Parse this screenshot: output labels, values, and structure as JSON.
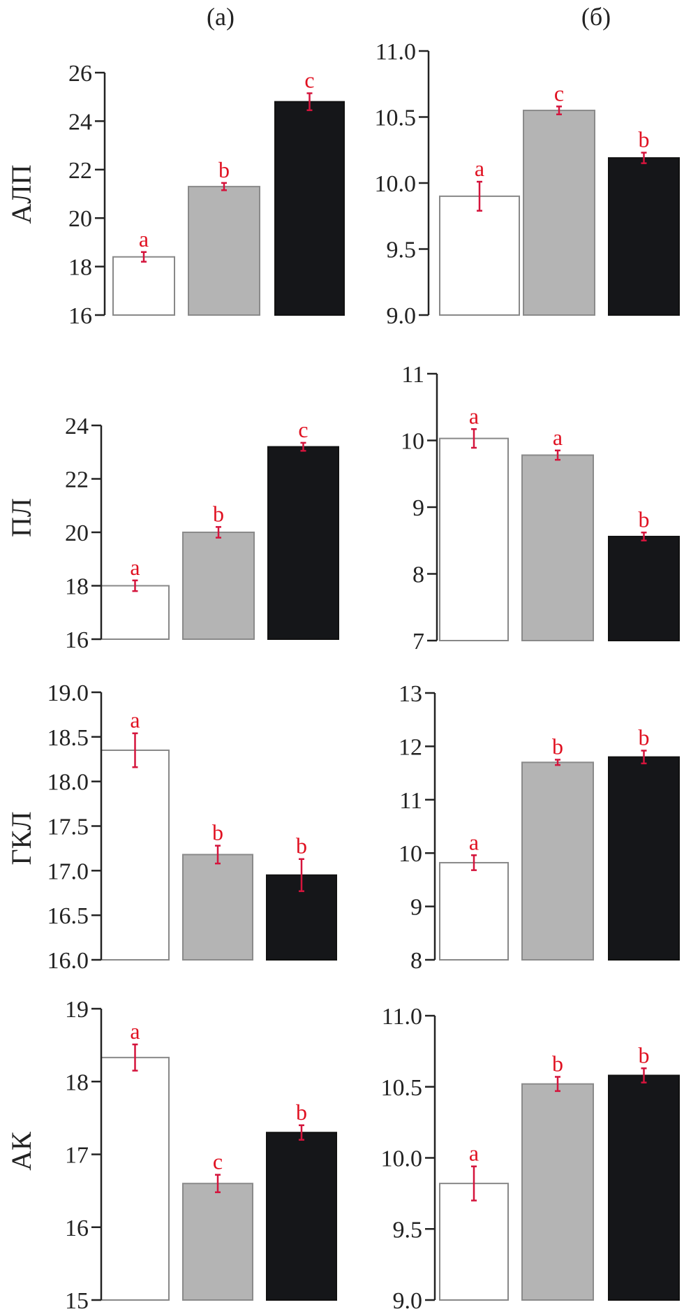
{
  "column_labels": {
    "left": "(а)",
    "right": "(б)"
  },
  "row_labels": [
    "АЛП",
    "ПЛ",
    "ГКЛ",
    "АК"
  ],
  "colors": {
    "bar_white": "#ffffff",
    "bar_gray": "#b4b4b4",
    "bar_black": "#151619",
    "error_bar": "#d4143c",
    "letter": "#e01020",
    "axis": "#222222"
  },
  "chart_data": [
    {
      "panel": "АЛП (а)",
      "type": "bar",
      "ylim": [
        16,
        26
      ],
      "yticks": [
        "16",
        "18",
        "20",
        "22",
        "24",
        "26"
      ],
      "xlabel": "",
      "ylabel": "АЛП",
      "values": [
        18.4,
        21.3,
        24.8
      ],
      "errors": [
        0.2,
        0.15,
        0.35
      ],
      "letters": [
        "a",
        "b",
        "c"
      ]
    },
    {
      "panel": "АЛП (б)",
      "type": "bar",
      "ylim": [
        9.0,
        11.0
      ],
      "yticks": [
        "9.0",
        "9.5",
        "10.0",
        "10.5",
        "11.0"
      ],
      "xlabel": "",
      "ylabel": "",
      "values": [
        9.9,
        10.55,
        10.19
      ],
      "errors": [
        0.11,
        0.03,
        0.04
      ],
      "letters": [
        "a",
        "c",
        "b"
      ]
    },
    {
      "panel": "ПЛ (а)",
      "type": "bar",
      "ylim": [
        16,
        24
      ],
      "yticks": [
        "16",
        "18",
        "20",
        "22",
        "24"
      ],
      "xlabel": "",
      "ylabel": "ПЛ",
      "values": [
        18.0,
        20.0,
        23.2
      ],
      "errors": [
        0.2,
        0.2,
        0.15
      ],
      "letters": [
        "a",
        "b",
        "c"
      ]
    },
    {
      "panel": "ПЛ (б)",
      "type": "bar",
      "ylim": [
        7,
        11
      ],
      "yticks": [
        "7",
        "8",
        "9",
        "10",
        "11"
      ],
      "xlabel": "",
      "ylabel": "",
      "values": [
        10.03,
        9.78,
        8.56
      ],
      "errors": [
        0.14,
        0.07,
        0.06
      ],
      "letters": [
        "a",
        "a",
        "b"
      ]
    },
    {
      "panel": "ГКЛ (а)",
      "type": "bar",
      "ylim": [
        16.0,
        19.0
      ],
      "yticks": [
        "16.0",
        "16.5",
        "17.0",
        "17.5",
        "18.0",
        "18.5",
        "19.0"
      ],
      "xlabel": "",
      "ylabel": "ГКЛ",
      "values": [
        18.35,
        17.18,
        16.95
      ],
      "errors": [
        0.19,
        0.1,
        0.18
      ],
      "letters": [
        "a",
        "b",
        "b"
      ]
    },
    {
      "panel": "ГКЛ (б)",
      "type": "bar",
      "ylim": [
        8,
        13
      ],
      "yticks": [
        "8",
        "9",
        "10",
        "11",
        "12",
        "13"
      ],
      "xlabel": "",
      "ylabel": "",
      "values": [
        9.82,
        11.7,
        11.8
      ],
      "errors": [
        0.14,
        0.05,
        0.12
      ],
      "letters": [
        "a",
        "b",
        "b"
      ]
    },
    {
      "panel": "АК (а)",
      "type": "bar",
      "ylim": [
        15,
        19
      ],
      "yticks": [
        "15",
        "16",
        "17",
        "18",
        "19"
      ],
      "xlabel": "",
      "ylabel": "АК",
      "values": [
        18.33,
        16.6,
        17.3
      ],
      "errors": [
        0.18,
        0.12,
        0.1
      ],
      "letters": [
        "a",
        "c",
        "b"
      ]
    },
    {
      "panel": "АК (б)",
      "type": "bar",
      "ylim": [
        9.0,
        11.0
      ],
      "yticks": [
        "9.0",
        "9.5",
        "10.0",
        "10.5",
        "11.0"
      ],
      "xlabel": "",
      "ylabel": "",
      "values": [
        9.82,
        10.52,
        10.58
      ],
      "errors": [
        0.12,
        0.05,
        0.05
      ],
      "letters": [
        "a",
        "b",
        "b"
      ]
    }
  ]
}
